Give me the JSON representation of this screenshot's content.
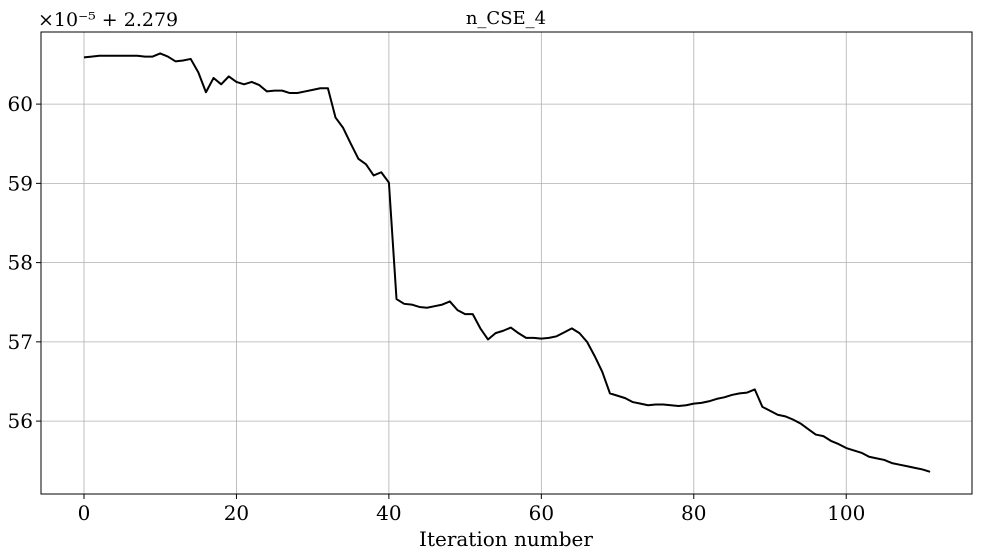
{
  "chart_data": {
    "type": "line",
    "title": "n_CSE_4",
    "offset_label": "×10⁻⁵ + 2.279",
    "x_label": "Iteration number",
    "x": [
      0,
      1,
      2,
      3,
      4,
      5,
      6,
      7,
      8,
      9,
      10,
      11,
      12,
      13,
      14,
      15,
      16,
      17,
      18,
      19,
      20,
      21,
      22,
      23,
      24,
      25,
      26,
      27,
      28,
      29,
      30,
      31,
      32,
      33,
      34,
      35,
      36,
      37,
      38,
      39,
      40,
      41,
      42,
      43,
      44,
      45,
      46,
      47,
      48,
      49,
      50,
      51,
      52,
      53,
      54,
      55,
      56,
      57,
      58,
      59,
      60,
      61,
      62,
      63,
      64,
      65,
      66,
      67,
      68,
      69,
      70,
      71,
      72,
      73,
      74,
      75,
      76,
      77,
      78,
      79,
      80,
      81,
      82,
      83,
      84,
      85,
      86,
      87,
      88,
      89,
      90,
      91,
      92,
      93,
      94,
      95,
      96,
      97,
      98,
      99,
      100,
      101,
      102,
      103,
      104,
      105,
      106,
      107,
      108,
      109,
      110,
      111
    ],
    "values": [
      60.59,
      60.6,
      60.61,
      60.61,
      60.61,
      60.61,
      60.61,
      60.61,
      60.6,
      60.6,
      60.64,
      60.6,
      60.54,
      60.55,
      60.57,
      60.4,
      60.15,
      60.33,
      60.25,
      60.35,
      60.28,
      60.25,
      60.28,
      60.24,
      60.16,
      60.17,
      60.17,
      60.14,
      60.14,
      60.16,
      60.18,
      60.2,
      60.2,
      59.83,
      59.7,
      59.5,
      59.31,
      59.24,
      59.1,
      59.14,
      59.01,
      57.54,
      57.48,
      57.47,
      57.44,
      57.43,
      57.45,
      57.47,
      57.51,
      57.4,
      57.35,
      57.35,
      57.17,
      57.03,
      57.11,
      57.14,
      57.18,
      57.11,
      57.05,
      57.05,
      57.04,
      57.05,
      57.07,
      57.12,
      57.17,
      57.11,
      57.0,
      56.82,
      56.62,
      56.35,
      56.32,
      56.29,
      56.24,
      56.22,
      56.2,
      56.21,
      56.21,
      56.2,
      56.19,
      56.2,
      56.22,
      56.23,
      56.25,
      56.28,
      56.3,
      56.33,
      56.35,
      56.36,
      56.4,
      56.18,
      56.13,
      56.08,
      56.06,
      56.02,
      55.97,
      55.9,
      55.83,
      55.81,
      55.75,
      55.71,
      55.66,
      55.63,
      55.6,
      55.55,
      55.53,
      55.51,
      55.47,
      55.45,
      55.43,
      55.41,
      55.39,
      55.36
    ],
    "color": "#000000",
    "xlim": [
      -5.64,
      116.5
    ],
    "ylim": [
      55.08,
      60.91
    ],
    "xticks": [
      0,
      20,
      40,
      60,
      80,
      100
    ],
    "yticks": [
      56,
      57,
      58,
      59,
      60
    ],
    "grid": true
  }
}
